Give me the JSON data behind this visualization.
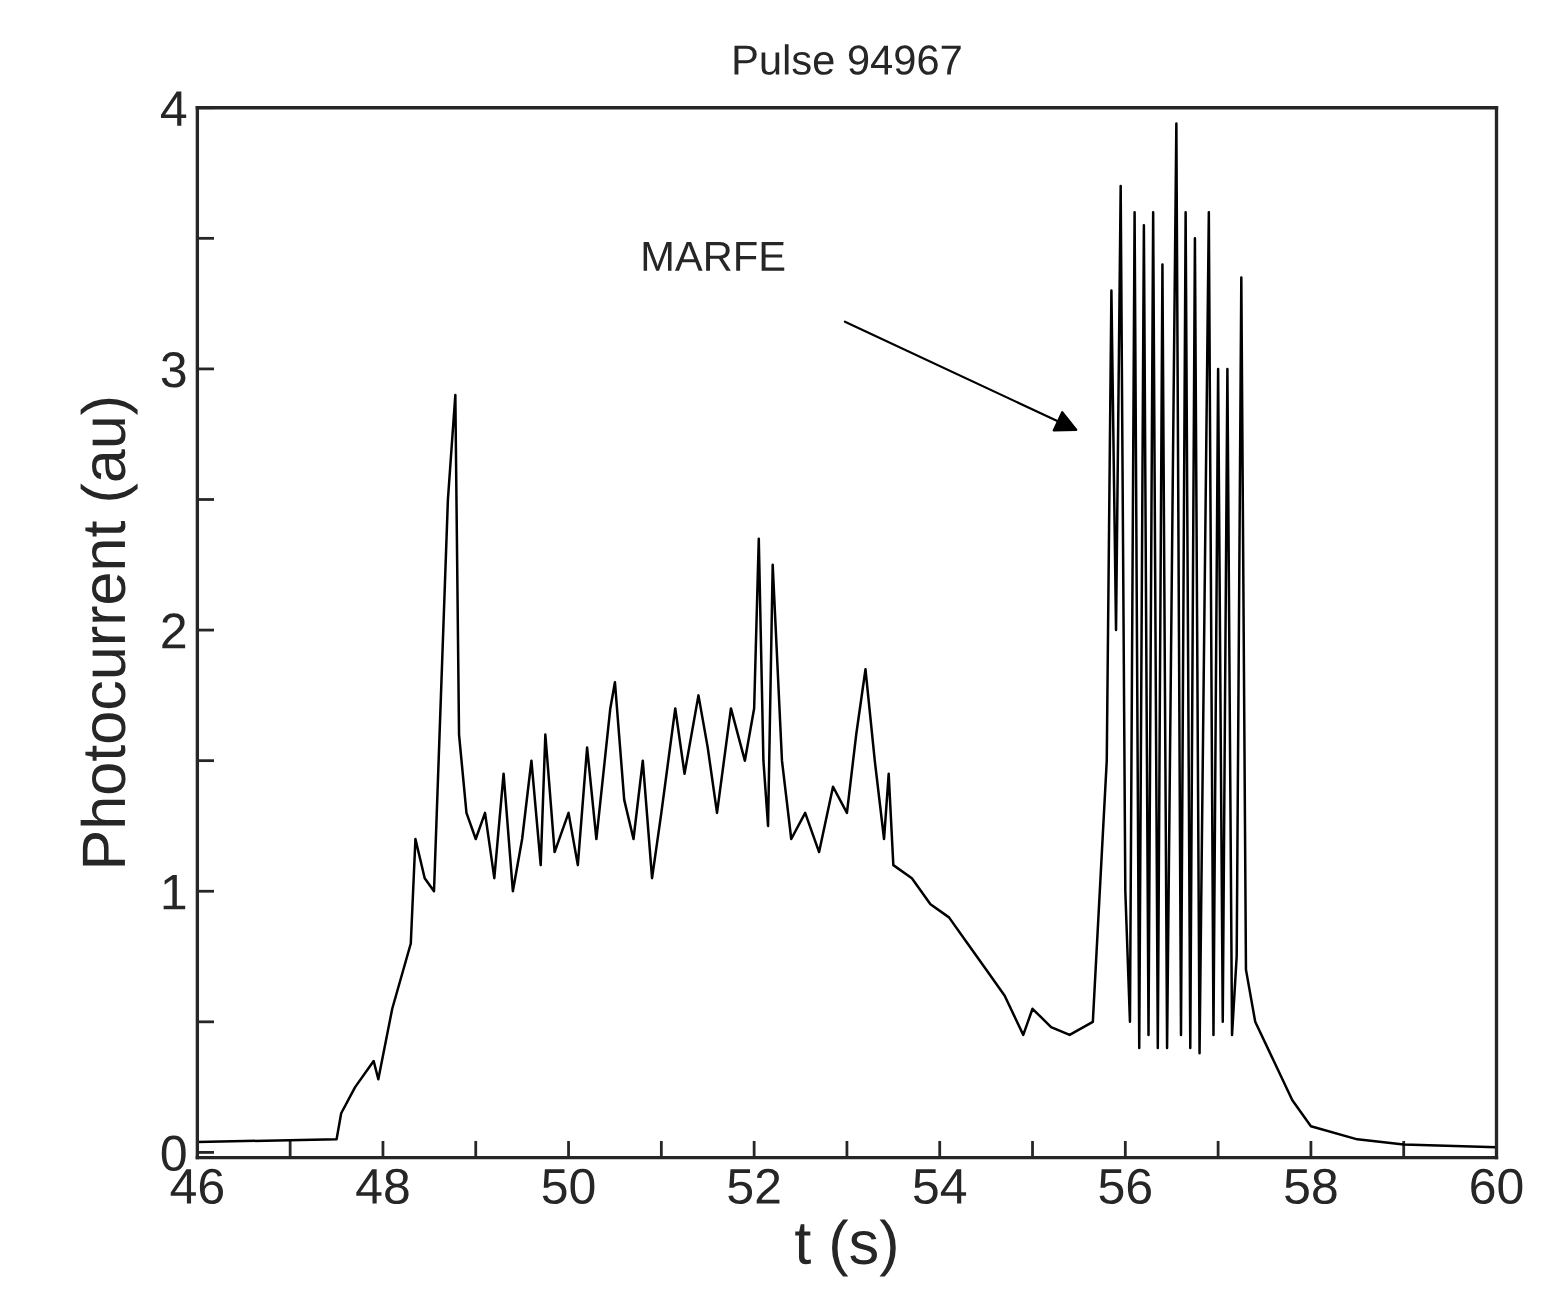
{
  "chart_data": {
    "type": "line",
    "title": "Pulse 94967",
    "xlabel": "t (s)",
    "ylabel": "Photocurrent (au)",
    "annotations": [
      "MARFE"
    ],
    "xlim": [
      46,
      60
    ],
    "ylim": [
      -0.02,
      4
    ],
    "xticks": [
      46,
      {
        "value": 47,
        "label": null
      },
      48,
      {
        "value": 49,
        "label": null
      },
      50,
      {
        "value": 51,
        "label": null
      },
      52,
      {
        "value": 53,
        "label": null
      },
      54,
      {
        "value": 55,
        "label": null
      },
      56,
      {
        "value": 57,
        "label": null
      },
      58,
      {
        "value": 59,
        "label": null
      },
      60
    ],
    "yticks": [
      0,
      {
        "value": 0.5,
        "label": null
      },
      1,
      {
        "value": 1.5,
        "label": null
      },
      2,
      {
        "value": 2.5,
        "label": null
      },
      3,
      {
        "value": 3.5,
        "label": null
      },
      4
    ],
    "marker": "none",
    "line_style": "solid",
    "series": [
      {
        "color": "#000000",
        "x": [
          46.0,
          47.5,
          47.55,
          47.7,
          47.9,
          47.95,
          48.1,
          48.3,
          48.35,
          48.45,
          48.55,
          48.6,
          48.7,
          48.78,
          48.82,
          48.9,
          49.0,
          49.1,
          49.2,
          49.3,
          49.4,
          49.5,
          49.6,
          49.7,
          49.75,
          49.85,
          50.0,
          50.1,
          50.2,
          50.3,
          50.45,
          50.5,
          50.6,
          50.7,
          50.8,
          50.9,
          51.0,
          51.15,
          51.25,
          51.4,
          51.5,
          51.6,
          51.75,
          51.9,
          52.0,
          52.05,
          52.1,
          52.15,
          52.2,
          52.3,
          52.4,
          52.55,
          52.7,
          52.85,
          53.0,
          53.1,
          53.2,
          53.3,
          53.4,
          53.45,
          53.5,
          53.7,
          53.9,
          54.1,
          54.3,
          54.5,
          54.7,
          54.9,
          55.0,
          55.2,
          55.4,
          55.65,
          55.8,
          55.85,
          55.9,
          55.95,
          56.0,
          56.05,
          56.1,
          56.15,
          56.2,
          56.25,
          56.3,
          56.35,
          56.4,
          56.45,
          56.55,
          56.6,
          56.65,
          56.7,
          56.75,
          56.8,
          56.9,
          56.95,
          57.0,
          57.05,
          57.1,
          57.15,
          57.2,
          57.25,
          57.3,
          57.4,
          57.6,
          57.8,
          58.0,
          58.5,
          59.0,
          60.0
        ],
        "values": [
          0.04,
          0.05,
          0.15,
          0.25,
          0.35,
          0.28,
          0.55,
          0.8,
          1.2,
          1.05,
          1.0,
          1.5,
          2.5,
          2.9,
          1.6,
          1.3,
          1.2,
          1.3,
          1.05,
          1.45,
          1.0,
          1.2,
          1.5,
          1.1,
          1.6,
          1.15,
          1.3,
          1.1,
          1.55,
          1.2,
          1.7,
          1.8,
          1.35,
          1.2,
          1.5,
          1.05,
          1.3,
          1.7,
          1.45,
          1.75,
          1.55,
          1.3,
          1.7,
          1.5,
          1.7,
          2.35,
          1.5,
          1.25,
          2.25,
          1.5,
          1.2,
          1.3,
          1.15,
          1.4,
          1.3,
          1.6,
          1.85,
          1.5,
          1.2,
          1.45,
          1.1,
          1.05,
          0.95,
          0.9,
          0.8,
          0.7,
          0.6,
          0.45,
          0.55,
          0.48,
          0.45,
          0.5,
          1.5,
          3.3,
          2.0,
          3.7,
          1.0,
          0.5,
          3.6,
          0.4,
          3.55,
          0.45,
          3.6,
          0.4,
          3.4,
          0.4,
          3.94,
          0.45,
          3.6,
          0.4,
          3.5,
          0.38,
          3.6,
          0.45,
          3.0,
          0.5,
          3.0,
          0.45,
          0.75,
          3.35,
          0.7,
          0.5,
          0.35,
          0.2,
          0.1,
          0.05,
          0.03,
          0.02
        ]
      }
    ]
  }
}
